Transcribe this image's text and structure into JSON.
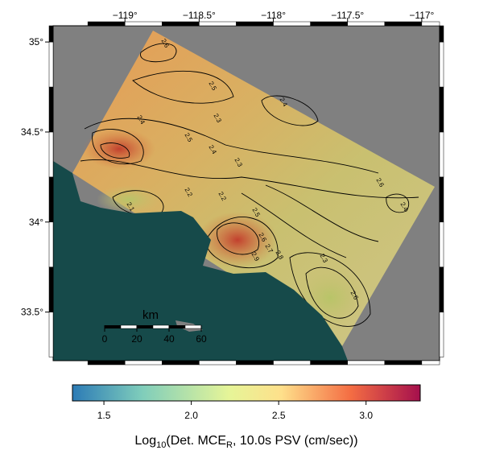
{
  "map": {
    "lon_lim": [
      -119.484,
      -116.88
    ],
    "lat_lim": [
      33.23,
      35.09
    ],
    "lon_ticks": [
      {
        "value": -119,
        "label": "−119°"
      },
      {
        "value": -118.5,
        "label": "−118.5°"
      },
      {
        "value": -118,
        "label": "−118°"
      },
      {
        "value": -117.5,
        "label": "−117.5°"
      },
      {
        "value": -117,
        "label": "−117°"
      }
    ],
    "lat_ticks": [
      {
        "value": 35,
        "label": "35°"
      },
      {
        "value": 34.5,
        "label": "34.5°"
      },
      {
        "value": 34,
        "label": "34°"
      },
      {
        "value": 33.5,
        "label": "33.5°"
      }
    ],
    "contour_labels": [
      2.6,
      2.5,
      2.4,
      2.5,
      2.3,
      2.4,
      2.2,
      2.2,
      2.3,
      2.1,
      2.5,
      2.6,
      2.7,
      2.8,
      2.9,
      2.6,
      2.4,
      2.3,
      2.6,
      2.4
    ],
    "scale_bar": {
      "title": "km",
      "ticks": [
        0,
        20,
        40,
        60
      ]
    }
  },
  "colorbar": {
    "lim": [
      1.32,
      3.31
    ],
    "ticks": [
      1.5,
      {
        "value": 2,
        "label": "2.0"
      },
      2.5,
      {
        "value": 3,
        "label": "3.0"
      }
    ],
    "label_parts": [
      "Log",
      "10",
      "(Det. MCE",
      "R",
      ", 10.0s PSV (cm/sec))"
    ]
  }
}
